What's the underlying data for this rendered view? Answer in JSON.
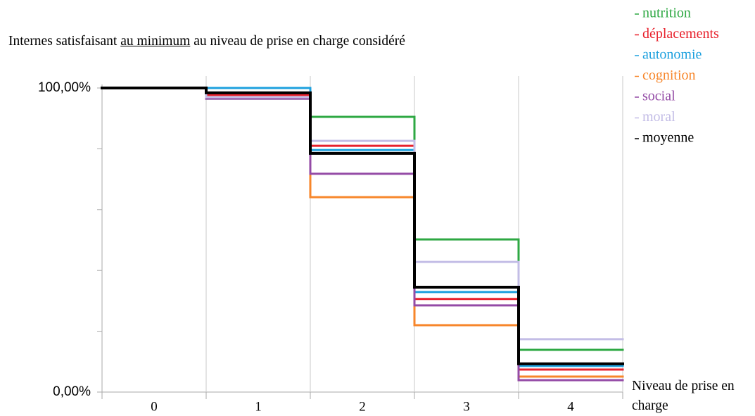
{
  "chart_data": {
    "type": "step",
    "title_before": "Internes satisfaisant ",
    "title_emphasis": "au minimum",
    "title_after": " au niveau de prise en charge considéré",
    "x_label": "Niveau de prise en charge",
    "categories": [
      "0",
      "1",
      "2",
      "3",
      "4"
    ],
    "series": [
      {
        "name": "nutrition",
        "color": "#2ea843",
        "values": [
          100,
          96.5,
          90.5,
          50.2,
          13.9
        ]
      },
      {
        "name": "déplacements",
        "color": "#e8212c",
        "values": [
          100,
          97.7,
          81,
          30.6,
          7.4
        ]
      },
      {
        "name": "autonomie",
        "color": "#1ca0de",
        "values": [
          100,
          100,
          79.6,
          32.9,
          8.6
        ]
      },
      {
        "name": "cognition",
        "color": "#f7862a",
        "values": [
          100,
          97,
          64.1,
          22,
          5.1
        ]
      },
      {
        "name": "social",
        "color": "#944ba6",
        "values": [
          100,
          96.5,
          71.8,
          28.5,
          3.9
        ]
      },
      {
        "name": "moral",
        "color": "#c3bde6",
        "values": [
          100,
          97,
          82.6,
          42.8,
          17.4
        ]
      },
      {
        "name": "moyenne",
        "color": "#000000",
        "values": [
          100,
          98.4,
          78.5,
          34.5,
          9.3
        ]
      }
    ],
    "ylim": [
      0,
      100
    ],
    "yticks": [
      {
        "value": 0,
        "label": "0,00%"
      },
      {
        "value": 100,
        "label": "100,00%"
      }
    ],
    "yminor": [
      20,
      40,
      60,
      80
    ],
    "grid": "x",
    "legend": "top-right"
  }
}
